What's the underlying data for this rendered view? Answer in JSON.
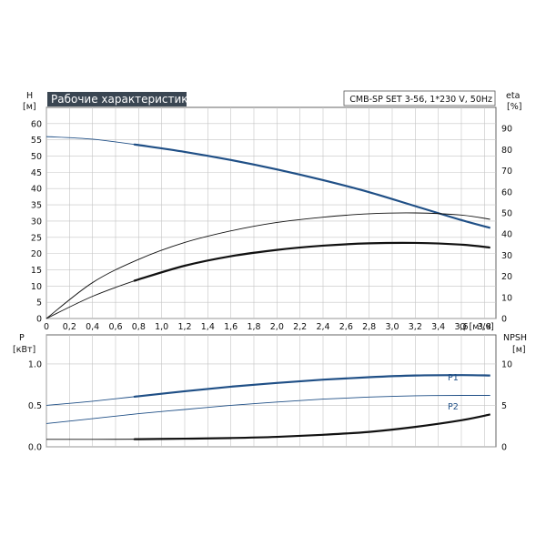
{
  "chart_data": [
    {
      "type": "line",
      "title": "Рабочие характеристики",
      "subtitle": "CMB-SP SET 3-56, 1*230 V, 50Hz",
      "xlabel": "Q [м³/ч]",
      "ylabel_left": [
        "H",
        "[м]"
      ],
      "ylabel_right": [
        "eta",
        "[%]"
      ],
      "xlim": [
        0,
        3.9
      ],
      "ylim_left": [
        0,
        65
      ],
      "ylim_right": [
        0,
        100
      ],
      "x_ticks": [
        "0",
        "0,2",
        "0,4",
        "0,6",
        "0,8",
        "1,0",
        "1,2",
        "1,4",
        "1,6",
        "1,8",
        "2,0",
        "2,2",
        "2,4",
        "2,6",
        "2,8",
        "3,0",
        "3,2",
        "3,4",
        "3,6",
        "3,8"
      ],
      "y_ticks_left": [
        "0",
        "5",
        "10",
        "15",
        "20",
        "25",
        "30",
        "35",
        "40",
        "45",
        "50",
        "55",
        "60"
      ],
      "y_ticks_right": [
        "0",
        "10",
        "20",
        "30",
        "40",
        "50",
        "60",
        "70",
        "80",
        "90"
      ],
      "grid": true,
      "series": [
        {
          "axis": "left",
          "color": "#1f4f86",
          "x": [
            0,
            0.4,
            0.8,
            1.2,
            1.6,
            2.0,
            2.4,
            2.8,
            3.2,
            3.6,
            3.85
          ],
          "y": [
            56,
            55.2,
            53.4,
            51.3,
            48.8,
            45.9,
            42.6,
            38.9,
            34.6,
            30.3,
            27.9
          ],
          "operating_range": [
            0.78,
            3.85
          ]
        },
        {
          "axis": "right",
          "color": "#111111",
          "x": [
            0,
            0.4,
            0.8,
            1.2,
            1.6,
            2.0,
            2.4,
            2.8,
            3.2,
            3.6,
            3.85
          ],
          "y": [
            0,
            17,
            28,
            36,
            41.5,
            45.5,
            48,
            49.6,
            50,
            49,
            47
          ],
          "operating_range": [
            3.85,
            3.85
          ]
        },
        {
          "axis": "right",
          "color": "#111111",
          "x": [
            0,
            0.4,
            0.8,
            1.2,
            1.6,
            2.0,
            2.4,
            2.8,
            3.2,
            3.6,
            3.85
          ],
          "y": [
            0,
            10.5,
            18.5,
            25,
            29.5,
            32.5,
            34.5,
            35.6,
            35.8,
            35,
            33.6
          ],
          "operating_range": [
            0.78,
            3.85
          ]
        }
      ]
    },
    {
      "type": "line",
      "ylabel_left": [
        "P",
        "[кВт]"
      ],
      "ylabel_right": [
        "NPSH",
        "[м]"
      ],
      "xlim": [
        0,
        3.9
      ],
      "ylim_left": [
        0,
        1.35
      ],
      "ylim_right": [
        0,
        13.5
      ],
      "y_ticks_left": [
        "0.0",
        "0.5",
        "1.0"
      ],
      "y_ticks_right": [
        "0",
        "5",
        "10"
      ],
      "grid": true,
      "series": [
        {
          "name": "P1",
          "axis": "left",
          "color": "#1f4f86",
          "x": [
            0,
            0.4,
            0.8,
            1.2,
            1.6,
            2.0,
            2.4,
            2.8,
            3.2,
            3.6,
            3.85
          ],
          "y": [
            0.5,
            0.55,
            0.61,
            0.67,
            0.725,
            0.77,
            0.81,
            0.84,
            0.86,
            0.865,
            0.86
          ],
          "operating_range": [
            0.78,
            3.85
          ]
        },
        {
          "name": "P2",
          "axis": "left",
          "color": "#1f4f86",
          "x": [
            0,
            0.4,
            0.8,
            1.2,
            1.6,
            2.0,
            2.4,
            2.8,
            3.2,
            3.6,
            3.85
          ],
          "y": [
            0.28,
            0.34,
            0.4,
            0.45,
            0.5,
            0.54,
            0.575,
            0.6,
            0.615,
            0.62,
            0.62
          ],
          "operating_range": [
            3.85,
            3.85
          ]
        },
        {
          "axis": "right",
          "color": "#111111",
          "x": [
            0,
            0.4,
            0.8,
            1.2,
            1.6,
            2.0,
            2.4,
            2.8,
            3.2,
            3.6,
            3.85
          ],
          "y": [
            0.9,
            0.9,
            0.92,
            0.98,
            1.06,
            1.2,
            1.45,
            1.8,
            2.4,
            3.2,
            3.9
          ],
          "operating_range": [
            0.78,
            3.85
          ]
        }
      ]
    }
  ]
}
